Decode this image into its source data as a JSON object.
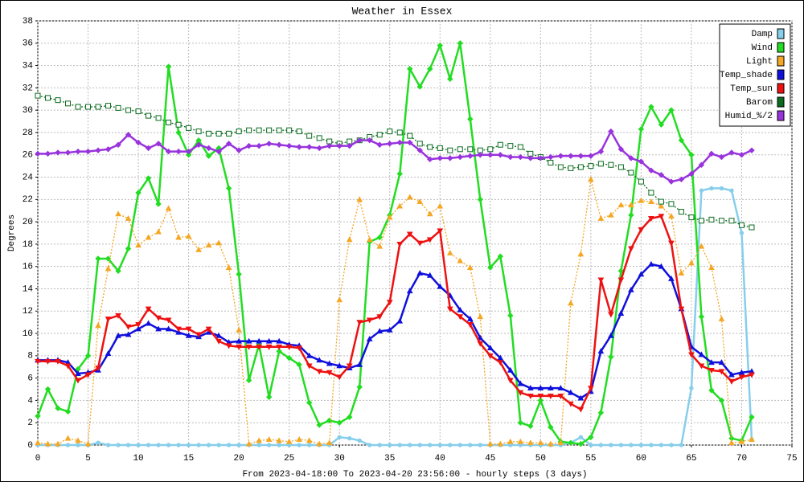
{
  "chart_data": {
    "type": "line",
    "title": "Weather in Essex",
    "y_label": "Degrees",
    "x_label": "From 2023-04-18:00 To 2023-04-20 23:56:00 - hourly steps (3 days)",
    "x": [
      0,
      1,
      2,
      3,
      4,
      5,
      6,
      7,
      8,
      9,
      10,
      11,
      12,
      13,
      14,
      15,
      16,
      17,
      18,
      19,
      20,
      21,
      22,
      23,
      24,
      25,
      26,
      27,
      28,
      29,
      30,
      31,
      32,
      33,
      34,
      35,
      36,
      37,
      38,
      39,
      40,
      41,
      42,
      43,
      44,
      45,
      46,
      47,
      48,
      49,
      50,
      51,
      52,
      53,
      54,
      55,
      56,
      57,
      58,
      59,
      60,
      61,
      62,
      63,
      64,
      65,
      66,
      67,
      68,
      69,
      70,
      71
    ],
    "xlim": [
      0,
      75
    ],
    "xticks": [
      0,
      5,
      10,
      15,
      20,
      25,
      30,
      35,
      40,
      45,
      50,
      55,
      60,
      65,
      70,
      75
    ],
    "ylim": [
      0,
      38
    ],
    "yticks": [
      0,
      2,
      4,
      6,
      8,
      10,
      12,
      14,
      16,
      18,
      20,
      22,
      24,
      26,
      28,
      30,
      32,
      34,
      36,
      38
    ],
    "grid": true,
    "legend": "top-right",
    "series": [
      {
        "name": "Damp",
        "color": "#87ceeb",
        "marker": "circle",
        "dash": false,
        "values": [
          0,
          0,
          0,
          0,
          0,
          0,
          0.2,
          0,
          0,
          0,
          0,
          0,
          0,
          0,
          0,
          0,
          0,
          0,
          0,
          0,
          0,
          0,
          0,
          0,
          0,
          0,
          0,
          0,
          0,
          0,
          0.7,
          0.6,
          0.4,
          0,
          0,
          0,
          0,
          0,
          0,
          0,
          0,
          0,
          0,
          0,
          0,
          0,
          0,
          0,
          0,
          0,
          0,
          0,
          0,
          0.2,
          0.7,
          0,
          0,
          0,
          0,
          0,
          0,
          0,
          0,
          0,
          0,
          5.1,
          22.8,
          23,
          23,
          22.8,
          19,
          0.5
        ]
      },
      {
        "name": "Wind",
        "color": "#22dd22",
        "marker": "diamond",
        "dash": false,
        "values": [
          2.6,
          5,
          3.3,
          3,
          6.8,
          8,
          16.7,
          16.7,
          15.6,
          17.6,
          22.6,
          23.9,
          21.6,
          33.9,
          28,
          26,
          27.3,
          25.9,
          26.6,
          23,
          15.3,
          5.8,
          9,
          4.3,
          8.4,
          7.8,
          7.2,
          3.8,
          1.8,
          2.2,
          2,
          2.5,
          5.2,
          18.2,
          18.6,
          20.6,
          24.3,
          33.7,
          32.1,
          33.7,
          35.8,
          32.8,
          36,
          29.2,
          22,
          15.9,
          16.9,
          11.6,
          2,
          1.7,
          4,
          1.6,
          0.3,
          0.2,
          0.1,
          0.7,
          2.9,
          7.9,
          15.6,
          20.6,
          28.3,
          30.3,
          28.7,
          30,
          27.3,
          26,
          11.5,
          4.9,
          4,
          0.6,
          0.4,
          2.5
        ]
      },
      {
        "name": "Light",
        "color": "#f5a623",
        "marker": "triangle-up",
        "dash": true,
        "values": [
          0.2,
          0.1,
          0.1,
          0.6,
          0.4,
          0.1,
          10.7,
          15.8,
          20.7,
          20.3,
          17.9,
          18.6,
          19.1,
          21.2,
          18.6,
          18.7,
          17.5,
          17.9,
          18.1,
          15.9,
          10.3,
          0.1,
          0.4,
          0.5,
          0.4,
          0.3,
          0.5,
          0.4,
          0.1,
          0.2,
          13,
          18.4,
          22,
          18.4,
          17.8,
          20.4,
          21.4,
          22.2,
          21.8,
          20.7,
          21.4,
          17.2,
          16.5,
          15.9,
          11.5,
          0.1,
          0.1,
          0.3,
          0.3,
          0.2,
          0.2,
          0.1,
          0.2,
          12.7,
          17.1,
          23.8,
          20.3,
          20.6,
          21.5,
          21.5,
          21.9,
          21.8,
          21.4,
          20.5,
          15.4,
          16.3,
          17.8,
          15.9,
          11.3,
          0.2,
          0.3,
          0.5
        ]
      },
      {
        "name": "Temp_shade",
        "color": "#1010dd",
        "marker": "triangle-up",
        "dash": false,
        "values": [
          7.6,
          7.6,
          7.6,
          7.4,
          6.4,
          6.5,
          6.7,
          8.2,
          9.8,
          9.9,
          10.4,
          10.9,
          10.4,
          10.4,
          10.1,
          9.8,
          9.7,
          10.1,
          9.8,
          9.2,
          9.3,
          9.3,
          9.3,
          9.3,
          9.3,
          9,
          8.9,
          8,
          7.6,
          7.3,
          7.1,
          6.9,
          7.2,
          9.5,
          10.2,
          10.3,
          11.1,
          13.8,
          15.4,
          15.2,
          14.2,
          13.4,
          12.1,
          11.3,
          9.6,
          8.7,
          7.8,
          6.7,
          5.5,
          5.1,
          5.1,
          5.1,
          5.1,
          4.7,
          4.2,
          4.8,
          8.4,
          9.8,
          11.8,
          13.9,
          15.3,
          16.2,
          16,
          14.9,
          12.2,
          8.8,
          8.1,
          7.4,
          7.4,
          6.3,
          6.5,
          6.6
        ]
      },
      {
        "name": "Temp_sun",
        "color": "#ee1111",
        "marker": "triangle-down",
        "dash": false,
        "values": [
          7.5,
          7.5,
          7.5,
          7.1,
          5.8,
          6.3,
          6.9,
          11.3,
          11.6,
          10.6,
          10.8,
          12.2,
          11.4,
          11.2,
          10.4,
          10.4,
          9.9,
          10.4,
          9.3,
          8.9,
          8.8,
          8.8,
          8.8,
          8.8,
          8.8,
          8.8,
          8.7,
          7.1,
          6.6,
          6.5,
          6.1,
          7.1,
          11,
          11.2,
          11.5,
          12.8,
          18,
          18.9,
          18.1,
          18.4,
          19.2,
          12.2,
          11.5,
          10.8,
          9.1,
          8,
          7.4,
          5.8,
          4.7,
          4.4,
          4.4,
          4.4,
          4.4,
          3.7,
          3.2,
          5.1,
          14.8,
          11.7,
          14.8,
          17.6,
          19.3,
          20.3,
          20.5,
          18.1,
          12.2,
          8.1,
          7.1,
          6.7,
          6.6,
          5.7,
          6.1,
          6.3
        ]
      },
      {
        "name": "Barom",
        "color": "#0b6b1f",
        "marker": "square",
        "dash": true,
        "values": [
          31.3,
          31.1,
          30.9,
          30.6,
          30.3,
          30.3,
          30.3,
          30.4,
          30.2,
          30,
          29.9,
          29.5,
          29.3,
          28.9,
          28.7,
          28.4,
          28.1,
          27.9,
          27.9,
          27.9,
          28.1,
          28.2,
          28.2,
          28.2,
          28.2,
          28.2,
          28.1,
          27.7,
          27.5,
          27.2,
          27,
          27.2,
          27.3,
          27.6,
          27.8,
          28.1,
          28,
          27.7,
          27,
          26.7,
          26.6,
          26.4,
          26.5,
          26.5,
          26.4,
          26.5,
          26.9,
          26.8,
          26.7,
          26.1,
          25.8,
          25.3,
          24.9,
          24.8,
          24.9,
          25,
          25.2,
          25.1,
          24.9,
          24.4,
          23.6,
          22.6,
          21.8,
          21.6,
          20.9,
          20.4,
          20.1,
          20.2,
          20.1,
          20.1,
          19.7,
          19.5
        ]
      },
      {
        "name": "Humid_%/2",
        "color": "#9933dd",
        "marker": "diamond",
        "dash": false,
        "values": [
          26.1,
          26.1,
          26.2,
          26.2,
          26.3,
          26.3,
          26.4,
          26.5,
          26.9,
          27.8,
          27.1,
          26.6,
          27,
          26.3,
          26.3,
          26.3,
          26.9,
          26.6,
          26.3,
          27,
          26.4,
          26.8,
          26.8,
          27,
          26.9,
          26.8,
          26.7,
          26.7,
          26.6,
          26.8,
          26.8,
          26.8,
          27.3,
          27.3,
          26.9,
          27,
          27.1,
          27.1,
          26.4,
          25.6,
          25.7,
          25.7,
          25.8,
          25.9,
          26,
          26,
          26,
          25.8,
          25.8,
          25.7,
          25.7,
          25.8,
          25.9,
          25.9,
          25.9,
          25.9,
          26.3,
          28.1,
          26.5,
          25.7,
          25.4,
          24.6,
          24.2,
          23.6,
          23.8,
          24.3,
          25.1,
          26.1,
          25.8,
          26.2,
          26,
          26.4
        ]
      }
    ]
  }
}
